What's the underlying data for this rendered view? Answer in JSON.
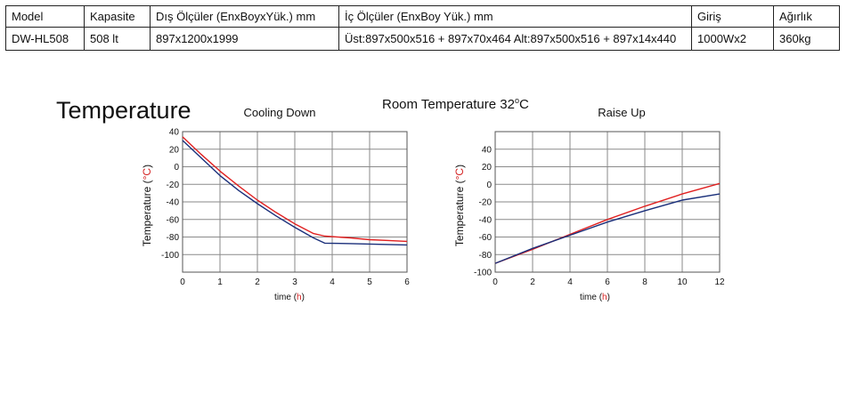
{
  "spec_table": {
    "headers": [
      "Model",
      "Kapasite",
      "Dış Ölçüler (EnxBoyxYük.) mm",
      "İç Ölçüler (EnxBoy Yük.) mm",
      "Giriş",
      "Ağırlık"
    ],
    "row": [
      "DW-HL508",
      "508 lt",
      "897x1200x1999",
      "Üst:897x500x516 + 897x70x464 Alt:897x500x516 + 897x14x440",
      "1000Wx2",
      "360kg"
    ]
  },
  "section_title": "Temperature",
  "room_note": {
    "text": "Room Temperature 32",
    "sup": "o",
    "unit": "C"
  },
  "chart_data": [
    {
      "type": "line",
      "title": "Cooling Down",
      "xlabel": {
        "text": "time",
        "unit": "h"
      },
      "ylabel": {
        "text": "Temperature",
        "unit": "°C"
      },
      "xlim": [
        0,
        6
      ],
      "ylim": [
        -120,
        40
      ],
      "x_ticks": [
        0,
        1,
        2,
        3,
        4,
        5,
        6
      ],
      "y_ticks": [
        40,
        20,
        0,
        -20,
        -40,
        -60,
        -80,
        -100
      ],
      "grid": true,
      "colors": {
        "red": "#e02020",
        "blue": "#1a2f7a",
        "label_accent": "#d42020"
      },
      "series": [
        {
          "color": "#e02020",
          "x": [
            0,
            0.5,
            1,
            1.5,
            2,
            2.5,
            3,
            3.5,
            3.8,
            4.5,
            5,
            5.5,
            6
          ],
          "y": [
            34,
            14,
            -5,
            -22,
            -38,
            -52,
            -65,
            -76,
            -79,
            -81,
            -83,
            -84,
            -85
          ]
        },
        {
          "color": "#1a2f7a",
          "x": [
            0,
            0.5,
            1,
            1.5,
            2,
            2.5,
            3,
            3.5,
            3.8,
            4.5,
            5,
            5.5,
            6
          ],
          "y": [
            30,
            10,
            -10,
            -27,
            -42,
            -56,
            -69,
            -81,
            -87,
            -87.5,
            -88,
            -88.5,
            -89
          ]
        }
      ]
    },
    {
      "type": "line",
      "title": "Raise Up",
      "xlabel": {
        "text": "time",
        "unit": "h"
      },
      "ylabel": {
        "text": "Temperature",
        "unit": "°C"
      },
      "xlim": [
        0,
        12
      ],
      "ylim": [
        -100,
        60
      ],
      "x_ticks": [
        0,
        2,
        4,
        6,
        8,
        10,
        12
      ],
      "y_ticks": [
        40,
        20,
        0,
        -20,
        -40,
        -60,
        -80,
        -100
      ],
      "grid": true,
      "colors": {
        "red": "#e02020",
        "blue": "#1a2f7a",
        "label_accent": "#d42020"
      },
      "series": [
        {
          "color": "#e02020",
          "x": [
            0,
            2,
            4,
            6,
            8,
            10,
            12
          ],
          "y": [
            -90,
            -74,
            -57,
            -40,
            -25,
            -11,
            1
          ]
        },
        {
          "color": "#1a2f7a",
          "x": [
            0,
            2,
            4,
            6,
            8,
            10,
            12
          ],
          "y": [
            -90,
            -73,
            -58,
            -43,
            -30,
            -18,
            -11
          ]
        }
      ]
    }
  ]
}
